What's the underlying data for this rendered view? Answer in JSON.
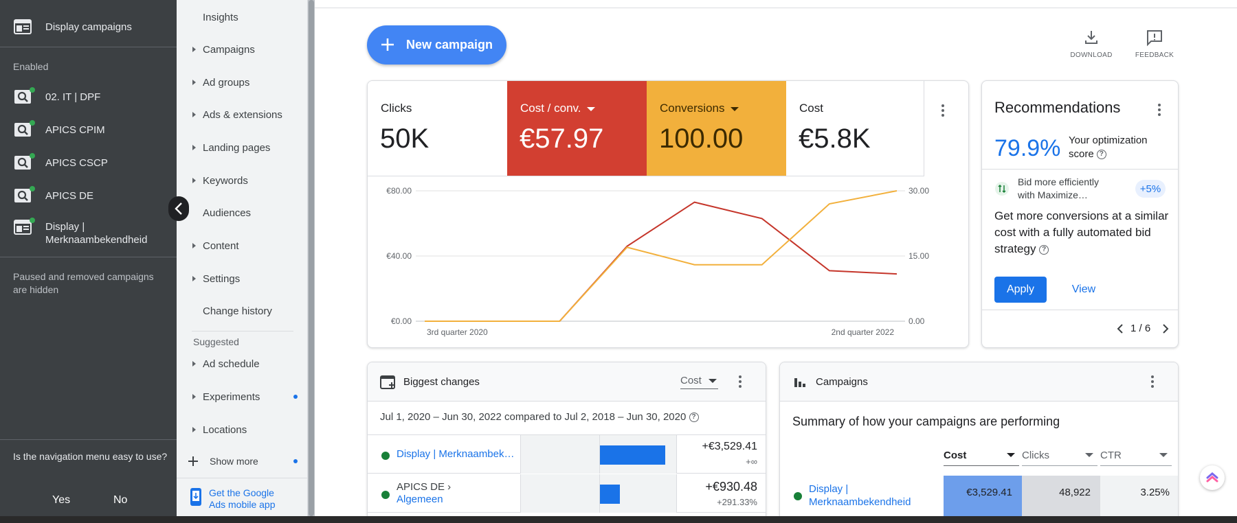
{
  "left_nav": {
    "current_campaign": "Display campaigns",
    "section_label": "Enabled",
    "campaigns": [
      {
        "label": "02. IT | DPF",
        "type": "search"
      },
      {
        "label": "APICS CPIM",
        "type": "search"
      },
      {
        "label": "APICS CSCP",
        "type": "search"
      },
      {
        "label": "APICS DE",
        "type": "search"
      },
      {
        "label": "Display |",
        "label2": "Merknaambekendheid",
        "type": "display"
      }
    ],
    "hidden_note": "Paused and removed campaigns are hidden",
    "survey_question": "Is the navigation menu easy to use?",
    "survey_yes": "Yes",
    "survey_no": "No"
  },
  "sub_nav": {
    "items": [
      {
        "label": "Insights",
        "expandable": false
      },
      {
        "label": "Campaigns",
        "expandable": true
      },
      {
        "label": "Ad groups",
        "expandable": true
      },
      {
        "label": "Ads & extensions",
        "expandable": true
      },
      {
        "label": "Landing pages",
        "expandable": true
      },
      {
        "label": "Keywords",
        "expandable": true
      },
      {
        "label": "Audiences",
        "expandable": false
      },
      {
        "label": "Content",
        "expandable": true
      },
      {
        "label": "Settings",
        "expandable": true
      },
      {
        "label": "Change history",
        "expandable": false
      }
    ],
    "suggested_label": "Suggested",
    "suggested": [
      {
        "label": "Ad schedule",
        "expandable": true
      },
      {
        "label": "Experiments",
        "expandable": true
      },
      {
        "label": "Locations",
        "expandable": true
      }
    ],
    "show_more": "Show more",
    "app_promo_line1": "Get the Google",
    "app_promo_line2": "Ads mobile app"
  },
  "toolbar": {
    "new_campaign": "New campaign",
    "download": "DOWNLOAD",
    "feedback": "FEEDBACK"
  },
  "metrics": [
    {
      "name": "Clicks",
      "value": "50K",
      "color": "#ffffff",
      "dropdown": false
    },
    {
      "name": "Cost / conv.",
      "value": "€57.97",
      "color": "#d23f31",
      "dropdown": true
    },
    {
      "name": "Conversions",
      "value": "100.00",
      "color": "#f2b03c",
      "dropdown": true
    },
    {
      "name": "Cost",
      "value": "€5.8K",
      "color": "#ffffff",
      "dropdown": false
    }
  ],
  "chart_data": {
    "type": "line",
    "x_labels": [
      "3rd quarter 2020",
      "2nd quarter 2022"
    ],
    "x": [
      0,
      1,
      2,
      3,
      4,
      5,
      6,
      7
    ],
    "left_axis": {
      "ticks": [
        "€80.00",
        "€40.00",
        "€0.00"
      ],
      "ylim": [
        0,
        80
      ]
    },
    "right_axis": {
      "ticks": [
        "30.00",
        "15.00",
        "0.00"
      ],
      "ylim": [
        0,
        30
      ]
    },
    "series": [
      {
        "values": [
          0,
          0,
          0,
          46,
          73,
          63,
          31,
          29
        ],
        "axis": "left",
        "color": "#c5352a"
      },
      {
        "values": [
          0,
          0,
          0,
          17,
          13,
          13,
          27,
          30
        ],
        "axis": "right",
        "color": "#f2b03c"
      }
    ]
  },
  "recommendations": {
    "title": "Recommendations",
    "score": "79.9%",
    "score_label": "Your optimization score",
    "item_text_line1": "Bid more efficiently",
    "item_text_line2": "with Maximize…",
    "item_badge": "+5%",
    "headline": "Get more conversions at a similar cost with a fully automated bid strategy",
    "apply": "Apply",
    "view": "View",
    "pager": "1 / 6"
  },
  "biggest_changes": {
    "title": "Biggest changes",
    "metric_select": "Cost",
    "date_range": "Jul 1, 2020 – Jun 30, 2022 compared to Jul 2, 2018 – Jun 30, 2020",
    "rows": [
      {
        "name": "Display | Merknaambek…",
        "name2": "",
        "value": "+€3,529.41",
        "change": "+∞",
        "bar": 1.0
      },
      {
        "name": "APICS DE ›",
        "name2": "Algemeen",
        "value": "+€930.48",
        "change": "+291.33%",
        "bar": 0.3
      }
    ]
  },
  "campaigns_card": {
    "title": "Campaigns",
    "summary": "Summary of how your campaigns are performing",
    "columns": [
      "Cost",
      "Clicks",
      "CTR"
    ],
    "rows": [
      {
        "name": "Display |",
        "name2": "Merknaambekendheid",
        "cost": "€3,529.41",
        "clicks": "48,922",
        "ctr": "3.25%"
      }
    ]
  }
}
